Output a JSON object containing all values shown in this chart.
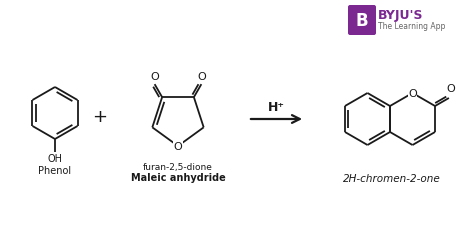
{
  "bg_color": "#ffffff",
  "line_color": "#1a1a1a",
  "byju_purple": "#7b2891",
  "label_phenol": "Phenol",
  "label_oh": "OH",
  "label_plus": "+",
  "label_furan": "furan-2,5-dione",
  "label_maleic": "Maleic anhydride",
  "label_catalyst": "H⁺",
  "label_product": "2H-chromen-2-one",
  "label_byju": "BYJU'S",
  "label_app": "The Learning App"
}
